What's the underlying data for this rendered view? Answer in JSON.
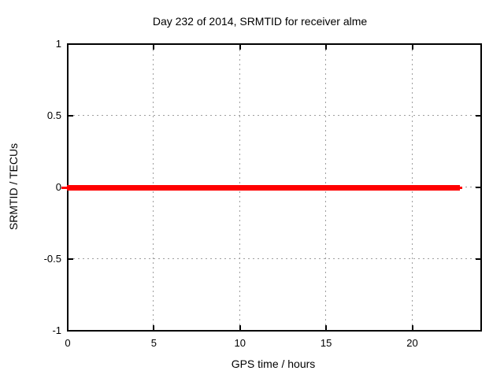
{
  "chart_data": {
    "type": "line",
    "title": "Day 232 of 2014, SRMTID for receiver alme",
    "xlabel": "GPS time / hours",
    "ylabel": "SRMTID / TECUs",
    "xlim": [
      0,
      24
    ],
    "ylim": [
      -1,
      1
    ],
    "xticks": {
      "values": [
        0,
        5,
        10,
        15,
        20
      ],
      "labels": [
        "0",
        "5",
        "10",
        "15",
        "20"
      ]
    },
    "yticks": {
      "values": [
        -1,
        -0.5,
        0,
        0.5,
        1
      ],
      "labels": [
        "-1",
        "-0.5",
        "0",
        "0.5",
        "1"
      ]
    },
    "grid": true,
    "legend": "none",
    "background_color": "#ffffff",
    "grid_color": "#9e9e9e",
    "axis_color": "#000000",
    "series": [
      {
        "name": "SRMTID",
        "color": "#ff0000",
        "linewidth": 7,
        "x": [
          0,
          22.8
        ],
        "y": [
          0,
          0
        ]
      }
    ]
  }
}
